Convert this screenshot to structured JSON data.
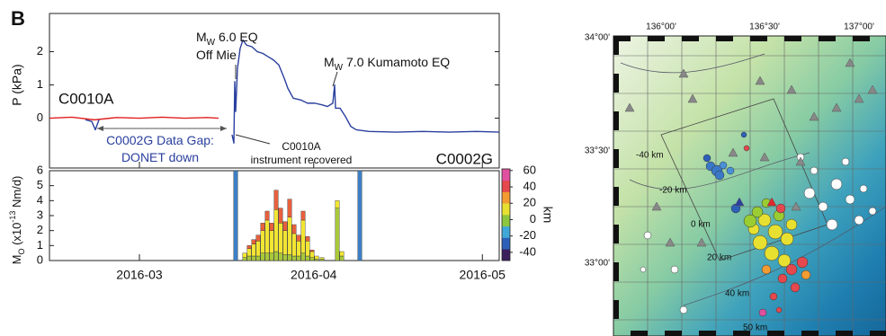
{
  "panel_label": "B",
  "chart_data": [
    {
      "type": "line",
      "ylabel": "P (kPa)",
      "xlim": [
        45,
        125
      ],
      "ylim": [
        -1.5,
        3.15
      ],
      "yticks": [
        0,
        1,
        2
      ],
      "series": [
        {
          "name": "C0010A",
          "color": "#e02020",
          "x": [
            45,
            49,
            53,
            57,
            61,
            65,
            69,
            73,
            75.08
          ],
          "values": [
            0,
            0.03,
            -0.05,
            0.02,
            0,
            0.03,
            0,
            0.02,
            0
          ]
        },
        {
          "name": "C0002G",
          "color": "#2a3f9e",
          "x": [
            51.4,
            52.52,
            53.16,
            53.8,
            65,
            77.48,
            77.8,
            77.96,
            78.12,
            78.44,
            78.92,
            79.4,
            80.04,
            81.0,
            81.96,
            82.92,
            83.88,
            84.84,
            85.8,
            86.76,
            87.4,
            88.36,
            89.64,
            90.92,
            92.2,
            93.48,
            94.44,
            95.4,
            95.72,
            95.88,
            96.68,
            97.64,
            98.6,
            99.56,
            101.8,
            106.6,
            111.4,
            116.2,
            121.0,
            125.0
          ],
          "values": [
            -0.05,
            -0.1,
            -0.35,
            -0.05,
            null,
            -0.5,
            -0.75,
            1.1,
            0.2,
            1.5,
            2.1,
            2.35,
            2.2,
            2.15,
            2.0,
            1.95,
            1.85,
            1.75,
            1.6,
            1.2,
            0.9,
            0.6,
            0.55,
            0.45,
            0.45,
            0.4,
            0.35,
            0.45,
            1.0,
            0.3,
            0.3,
            0.05,
            -0.25,
            -0.35,
            -0.4,
            -0.42,
            -0.4,
            -0.42,
            -0.4,
            -0.42
          ]
        }
      ],
      "annotations": [
        {
          "text": "M",
          "sub": "W",
          "rest": " 6.0 EQ"
        },
        {
          "text": "Off Mie"
        },
        {
          "text": "M",
          "sub": "W",
          "rest": " 7.0 Kumamoto EQ"
        },
        {
          "text": "C0002G Data Gap:"
        },
        {
          "text": "DONET down"
        },
        {
          "text": "C0010A"
        },
        {
          "text": "instrument recovered"
        }
      ]
    },
    {
      "type": "bar",
      "stacked": true,
      "ylabel": {
        "text": "M",
        "sub": "O",
        "rest": " (x10",
        "sup": "-13",
        "end": " Nm/d)"
      },
      "xlim": [
        45,
        125
      ],
      "ylim": [
        0,
        6
      ],
      "yticks": [
        0,
        1,
        2,
        3,
        4,
        5,
        6
      ],
      "xticks": [
        {
          "value": 61,
          "label": "2016-03"
        },
        {
          "value": 92,
          "label": "2016-04"
        },
        {
          "value": 122,
          "label": "2016-05"
        }
      ],
      "x": [
        78.12,
        79.72,
        80.52,
        81.32,
        82.12,
        82.92,
        83.72,
        84.52,
        85.32,
        86.12,
        86.92,
        87.72,
        88.52,
        89.32,
        90.12,
        90.92,
        91.72,
        92.52,
        93.48,
        96.2,
        97.0,
        100.2
      ],
      "series": [
        {
          "color": "#3d7fc4",
          "values": [
            6,
            0,
            0,
            0,
            0,
            0,
            0,
            0,
            0,
            0,
            0,
            0,
            0,
            0,
            0,
            0,
            0,
            0,
            0,
            0,
            0,
            6
          ]
        },
        {
          "color": "#a8c83a",
          "values": [
            0,
            0.2,
            0.3,
            0.3,
            0.3,
            0.5,
            0.5,
            0.5,
            0.6,
            0.5,
            0.4,
            0.4,
            0.3,
            0.3,
            0.5,
            0.3,
            0.2,
            0.1,
            0.1,
            3.5,
            0.3,
            0
          ]
        },
        {
          "color": "#f2e533",
          "values": [
            0,
            0.3,
            0.5,
            0.8,
            1.0,
            1.5,
            2.2,
            1.5,
            2.8,
            2.0,
            1.6,
            2.5,
            1.5,
            1.0,
            2.2,
            1.0,
            0.4,
            0.2,
            0.1,
            0.5,
            0.3,
            0
          ]
        },
        {
          "color": "#e8603c",
          "values": [
            0,
            0,
            0.2,
            0.3,
            0.4,
            0.5,
            0.6,
            0.5,
            1.3,
            1.0,
            0.6,
            1.2,
            0.6,
            0.4,
            0.6,
            0.3,
            0.1,
            0,
            0,
            0,
            0,
            0
          ]
        }
      ],
      "colorbar": {
        "label": "km",
        "lim": [
          -50,
          62
        ],
        "ticks": [
          60,
          40,
          20,
          0,
          -20,
          -40
        ],
        "colors": [
          "#3a1f5c",
          "#2d5fb8",
          "#40a8d8",
          "#8cc63f",
          "#e8e030",
          "#f39c32",
          "#e5484d",
          "#e0509f"
        ]
      }
    }
  ],
  "map": {
    "lon_labels": [
      "136°00'",
      "136°30'",
      "137°00'"
    ],
    "lat_labels": [
      "34°00'",
      "33°30'",
      "33°00'"
    ],
    "depth_labels": [
      "-40 km",
      "-20 km",
      "0 km",
      "20 km",
      "40 km",
      "50 km"
    ]
  }
}
